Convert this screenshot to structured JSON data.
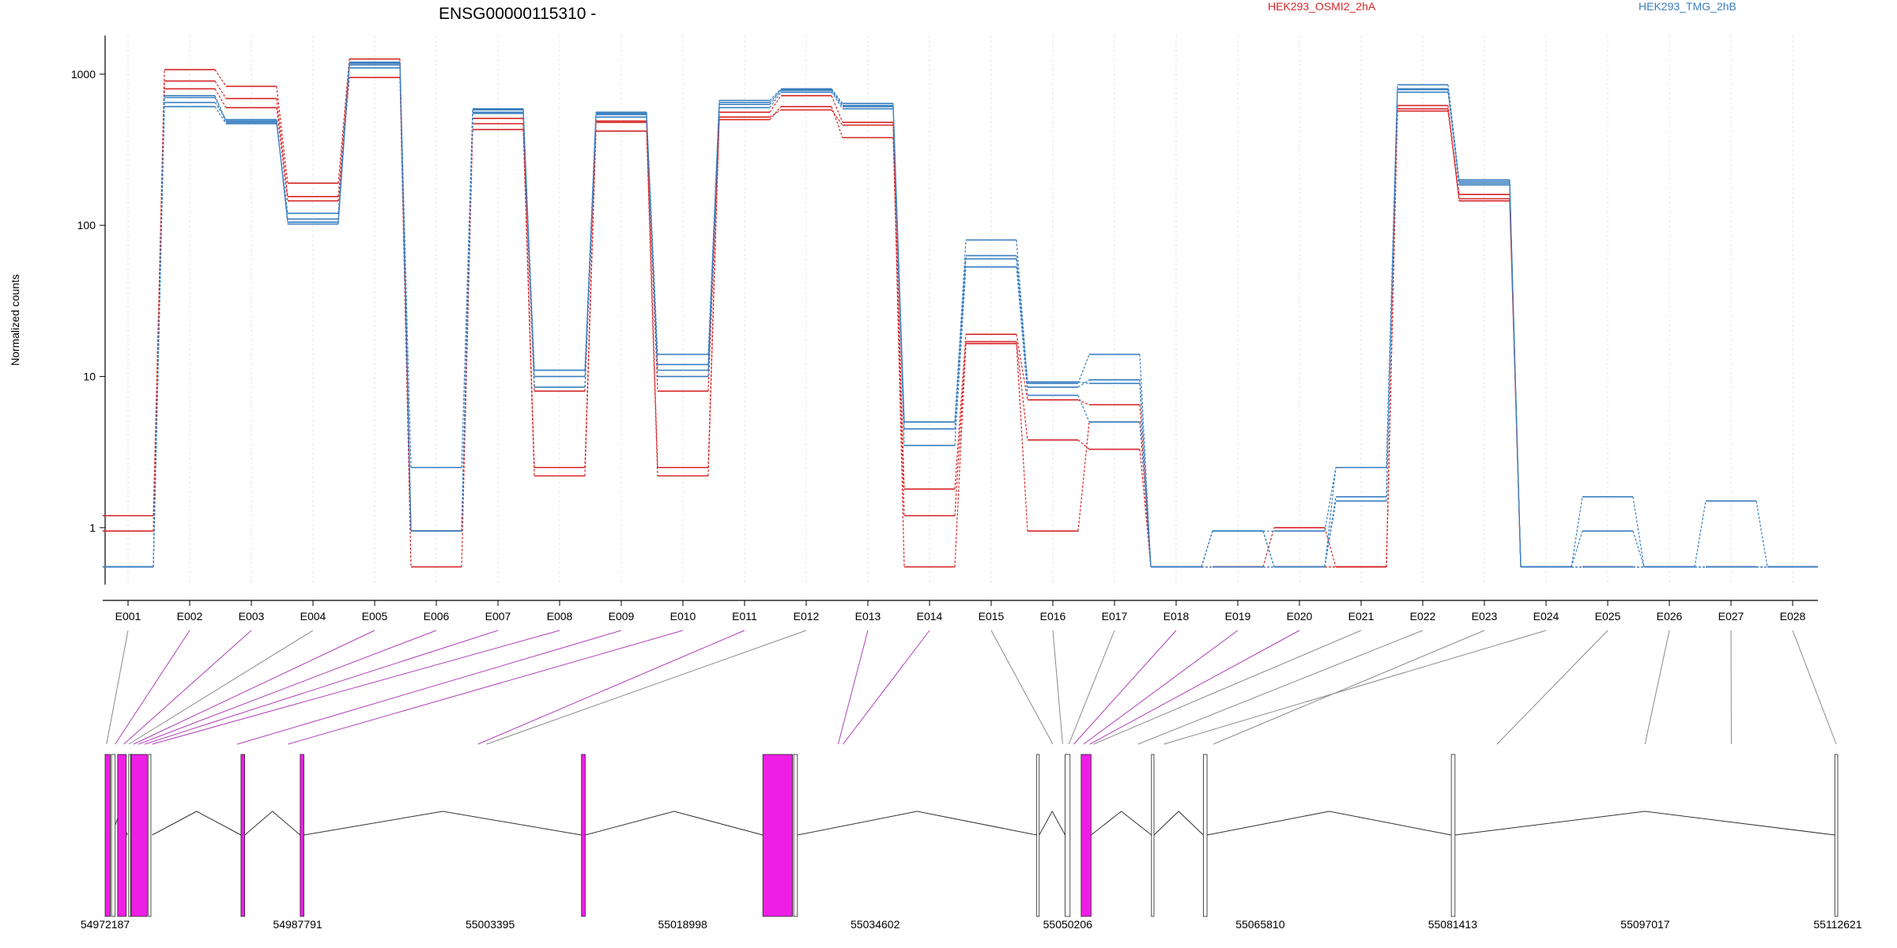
{
  "chart_data": {
    "type": "line",
    "title": "ENSG00000115310 -",
    "ylabel": "Normalized counts",
    "xlabel": "",
    "yscale": "log",
    "ylim": [
      0.48,
      1600
    ],
    "yticks": [
      {
        "value": 1,
        "label": "1"
      },
      {
        "value": 10,
        "label": "10"
      },
      {
        "value": 100,
        "label": "100"
      },
      {
        "value": 1000,
        "label": "1000"
      }
    ],
    "grid": "vertical dotted",
    "legend_placement": "top-right",
    "categories": [
      "E001",
      "E002",
      "E003",
      "E004",
      "E005",
      "E006",
      "E007",
      "E008",
      "E009",
      "E010",
      "E011",
      "E012",
      "E013",
      "E014",
      "E015",
      "E016",
      "E017",
      "E018",
      "E019",
      "E020",
      "E021",
      "E022",
      "E023",
      "E024",
      "E025",
      "E026",
      "E027",
      "E028"
    ],
    "zero_value": 0.55,
    "series": [
      {
        "name": "HEK293_OSMI2_2hA",
        "color": "#d62728",
        "values": [
          0.95,
          1070,
          830,
          190,
          1260,
          0.95,
          510,
          2.5,
          490,
          2.5,
          560,
          720,
          480,
          1.8,
          19,
          7,
          6.5,
          0,
          0,
          1.0,
          0,
          590,
          160,
          0,
          0,
          0,
          0,
          0
        ]
      },
      {
        "color": "#d62728",
        "values": [
          1.2,
          900,
          690,
          155,
          1150,
          0.95,
          470,
          8,
          480,
          8,
          500,
          610,
          380,
          1.2,
          17,
          3.8,
          3.3,
          0,
          0,
          0,
          0,
          620,
          145,
          0,
          0,
          0,
          0,
          0
        ]
      },
      {
        "color": "#d62728",
        "values": [
          0,
          800,
          600,
          145,
          950,
          0,
          430,
          2.2,
          420,
          2.2,
          520,
          580,
          460,
          0,
          16.5,
          0.95,
          5.0,
          0,
          0,
          0,
          0,
          570,
          150,
          0,
          0,
          0,
          0,
          0
        ]
      },
      {
        "name": "HEK293_TMG_2hB",
        "color": "#3a7fc0",
        "values": [
          0,
          700,
          480,
          110,
          1200,
          2.5,
          590,
          11,
          560,
          14,
          670,
          800,
          640,
          5,
          80,
          9,
          14,
          0,
          0.95,
          0.95,
          2.5,
          850,
          200,
          0,
          1.6,
          0,
          1.5,
          0
        ]
      },
      {
        "color": "#3a7fc0",
        "values": [
          0,
          650,
          500,
          105,
          1150,
          0.95,
          550,
          10,
          520,
          11,
          630,
          780,
          610,
          4.5,
          63,
          8.5,
          9.5,
          0,
          0.95,
          0,
          1.5,
          790,
          185,
          0,
          0.95,
          0,
          0,
          0
        ]
      },
      {
        "color": "#3a7fc0",
        "values": [
          0,
          610,
          470,
          120,
          1100,
          0.95,
          560,
          8.5,
          540,
          10,
          600,
          760,
          590,
          3.5,
          53,
          7.5,
          5.0,
          0,
          0,
          0,
          2.5,
          760,
          195,
          0,
          0,
          0,
          0,
          0
        ]
      },
      {
        "color": "#3a7fc0",
        "values": [
          0,
          720,
          490,
          102,
          1180,
          0.95,
          580,
          11,
          550,
          12,
          650,
          790,
          620,
          5,
          60,
          9.2,
          9,
          0,
          0.95,
          0,
          1.6,
          800,
          190,
          0,
          0,
          0,
          0,
          0
        ]
      }
    ],
    "gene_model": {
      "coordinate_labels": [
        "54972187",
        "54987791",
        "55003395",
        "55018998",
        "55034602",
        "55050206",
        "55065810",
        "55081413",
        "55097017",
        "55112621"
      ],
      "exon_color": "#ee1ee6",
      "intron_color": "#333333"
    }
  }
}
